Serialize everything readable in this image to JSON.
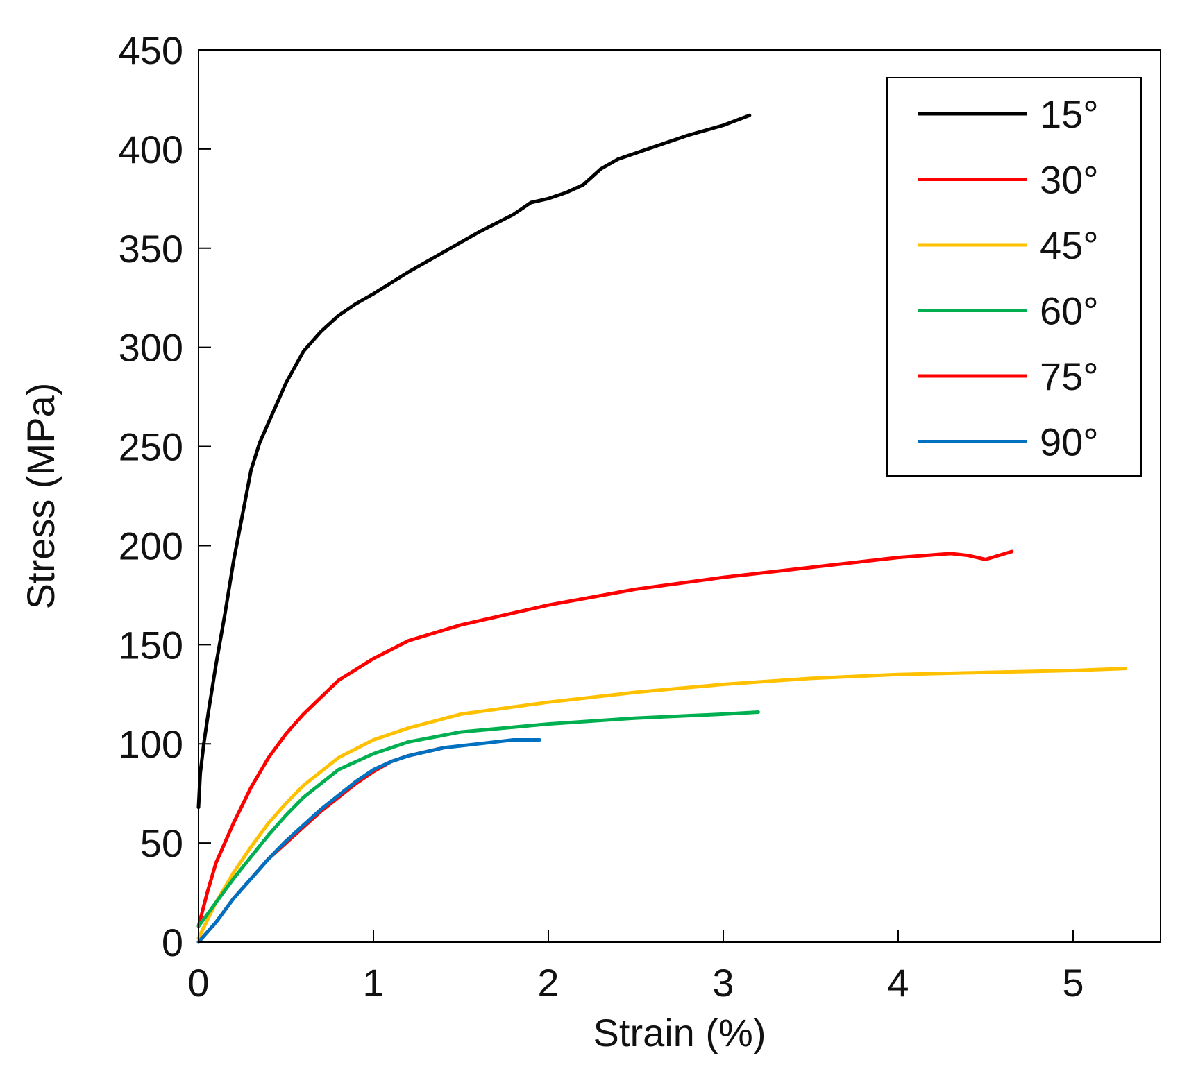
{
  "chart_data": {
    "type": "line",
    "title": "",
    "xlabel": "Strain (%)",
    "ylabel": "Stress (MPa)",
    "xlim": [
      0,
      5.5
    ],
    "ylim": [
      0,
      450
    ],
    "xticks": [
      0,
      1,
      2,
      3,
      4,
      5
    ],
    "yticks": [
      0,
      50,
      100,
      150,
      200,
      250,
      300,
      350,
      400,
      450
    ],
    "xtick_labels": [
      "0",
      "1",
      "2",
      "3",
      "4",
      "5"
    ],
    "ytick_labels": [
      "0",
      "50",
      "100",
      "150",
      "200",
      "250",
      "300",
      "350",
      "400",
      "450"
    ],
    "grid": false,
    "legend_position": "top-right",
    "series": [
      {
        "name": "15°",
        "color": "#000000",
        "x": [
          0,
          0.01,
          0.03,
          0.06,
          0.1,
          0.15,
          0.2,
          0.25,
          0.3,
          0.35,
          0.4,
          0.5,
          0.6,
          0.7,
          0.8,
          0.9,
          1.0,
          1.2,
          1.4,
          1.6,
          1.8,
          1.9,
          2.0,
          2.1,
          2.2,
          2.3,
          2.4,
          2.5,
          2.6,
          2.8,
          3.0,
          3.15
        ],
        "y": [
          68,
          85,
          100,
          118,
          140,
          165,
          192,
          215,
          238,
          252,
          262,
          282,
          298,
          308,
          316,
          322,
          327,
          338,
          348,
          358,
          367,
          373,
          375,
          378,
          382,
          390,
          395,
          398,
          401,
          407,
          412,
          417
        ]
      },
      {
        "name": "30°",
        "color": "#ff0000",
        "x": [
          0,
          0.05,
          0.1,
          0.2,
          0.3,
          0.4,
          0.5,
          0.6,
          0.8,
          1.0,
          1.2,
          1.5,
          2.0,
          2.5,
          3.0,
          3.5,
          4.0,
          4.3,
          4.4,
          4.5,
          4.65
        ],
        "y": [
          8,
          25,
          40,
          60,
          78,
          93,
          105,
          115,
          132,
          143,
          152,
          160,
          170,
          178,
          184,
          189,
          194,
          196,
          195,
          193,
          197
        ]
      },
      {
        "name": "45°",
        "color": "#ffc000",
        "x": [
          0,
          0.1,
          0.2,
          0.3,
          0.4,
          0.5,
          0.6,
          0.8,
          1.0,
          1.2,
          1.5,
          2.0,
          2.5,
          3.0,
          3.5,
          4.0,
          4.5,
          5.0,
          5.3
        ],
        "y": [
          2,
          20,
          35,
          48,
          60,
          70,
          79,
          93,
          102,
          108,
          115,
          121,
          126,
          130,
          133,
          135,
          136,
          137,
          138
        ]
      },
      {
        "name": "60°",
        "color": "#00b050",
        "x": [
          0,
          0.1,
          0.2,
          0.3,
          0.4,
          0.5,
          0.6,
          0.8,
          1.0,
          1.2,
          1.5,
          2.0,
          2.5,
          3.0,
          3.2
        ],
        "y": [
          8,
          20,
          32,
          43,
          54,
          64,
          73,
          87,
          95,
          101,
          106,
          110,
          113,
          115,
          116
        ]
      },
      {
        "name": "75°",
        "color": "#ff0000",
        "x": [
          0,
          0.1,
          0.2,
          0.3,
          0.4,
          0.5,
          0.6,
          0.7,
          0.8,
          0.9,
          1.0,
          1.1,
          1.2,
          1.3,
          1.4
        ],
        "y": [
          0,
          10,
          22,
          32,
          42,
          50,
          58,
          66,
          73,
          80,
          86,
          91,
          94,
          96,
          98
        ]
      },
      {
        "name": "90°",
        "color": "#0070c0",
        "x": [
          0,
          0.1,
          0.2,
          0.3,
          0.4,
          0.5,
          0.6,
          0.7,
          0.8,
          0.9,
          1.0,
          1.1,
          1.2,
          1.4,
          1.6,
          1.8,
          1.95
        ],
        "y": [
          0,
          10,
          22,
          32,
          42,
          51,
          59,
          67,
          74,
          81,
          87,
          91,
          94,
          98,
          100,
          102,
          102
        ]
      }
    ]
  }
}
